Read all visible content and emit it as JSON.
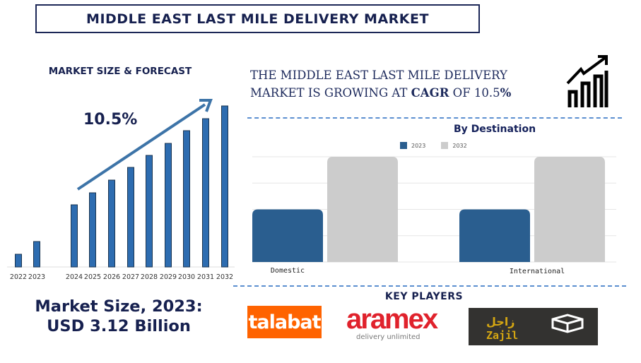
{
  "title": "MIDDLE EAST LAST MILE DELIVERY MARKET",
  "left": {
    "heading": "MARKET SIZE & FORECAST",
    "cagr_label": "10.5%"
  },
  "headline": {
    "line1": "THE MIDDLE EAST LAST MILE DELIVERY",
    "line2_prefix": "MARKET IS GROWING AT ",
    "line2_bold": "CAGR",
    "line2_mid": " OF  10.5",
    "line2_pct": "%"
  },
  "market_size": {
    "line1": "Market Size, 2023:",
    "line2": "USD 3.12 Billion"
  },
  "key_players": {
    "title": "KEY PLAYERS",
    "logos": {
      "talabat": "talabat",
      "aramex": "aramex",
      "aramex_tag": "delivery unlimited",
      "zajil_ar": "زاجل",
      "zajil_en": "Zajil"
    }
  },
  "icons": {
    "trend": "bar-chart-trend-up-icon",
    "arrow": "growth-arrow-icon"
  },
  "colors": {
    "navy": "#16204f",
    "bar_blue": "#2d6cb0",
    "series_2023": "#2a5e8f",
    "series_2032": "#cccccc",
    "talabat": "#ff6300",
    "aramex": "#e0222c"
  },
  "chart_data": [
    {
      "type": "bar",
      "title": "MARKET SIZE & FORECAST",
      "annotation": "10.5%",
      "categories": [
        "2022",
        "2023",
        "2024",
        "2025",
        "2026",
        "2027",
        "2028",
        "2029",
        "2030",
        "2031",
        "2032"
      ],
      "values": [
        18,
        36,
        88,
        105,
        123,
        141,
        158,
        175,
        193,
        210,
        228
      ],
      "value_note": "relative heights, no axis values shown",
      "grid": false,
      "legend": "none"
    },
    {
      "type": "bar",
      "title": "By Destination",
      "categories": [
        "Domestic",
        "International"
      ],
      "series": [
        {
          "name": "2023",
          "values": [
            2,
            2
          ]
        },
        {
          "name": "2032",
          "values": [
            4,
            4
          ]
        }
      ],
      "ylim": [
        0,
        4
      ],
      "grid": true,
      "legend": "top-center"
    }
  ]
}
